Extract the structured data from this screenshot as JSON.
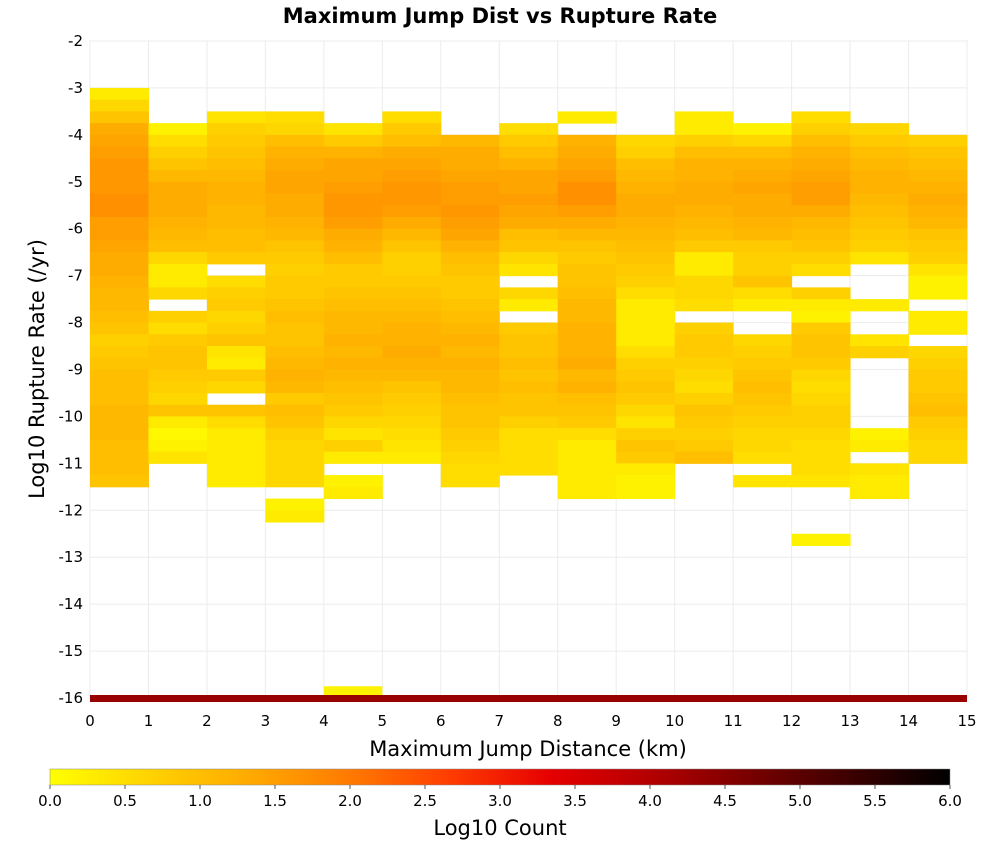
{
  "chart_data": {
    "type": "heatmap",
    "title": "Maximum Jump Dist vs Rupture Rate",
    "xlabel": "Maximum Jump Distance (km)",
    "ylabel": "Log10 Rupture Rate (/yr)",
    "xlim": [
      0,
      15
    ],
    "ylim": [
      -16,
      -2
    ],
    "x_ticks": [
      0,
      1,
      2,
      3,
      4,
      5,
      6,
      7,
      8,
      9,
      10,
      11,
      12,
      13,
      14,
      15
    ],
    "y_ticks": [
      -2,
      -3,
      -4,
      -5,
      -6,
      -7,
      -8,
      -9,
      -10,
      -11,
      -12,
      -13,
      -14,
      -15,
      -16
    ],
    "grid": true,
    "x_bin_width": 1,
    "y_bin_height": 0.25,
    "colorbar": {
      "label": "Log10 Count",
      "min": 0,
      "max": 6,
      "ticks": [
        "0.0",
        "0.5",
        "1.0",
        "1.5",
        "2.0",
        "2.5",
        "3.0",
        "3.5",
        "4.0",
        "4.5",
        "5.0",
        "5.5",
        "6.0"
      ],
      "colors": [
        "#ffff00",
        "#ffd200",
        "#ffaa00",
        "#ff7a00",
        "#ff3c00",
        "#e60000",
        "#b40000",
        "#780000",
        "#3c0000",
        "#000000"
      ]
    },
    "columns": [
      {
        "x": 0.5,
        "y_top": -3.0,
        "y_bottom": -11.5,
        "values": [
          0.3,
          0.6,
          0.9,
          1.3,
          1.4,
          1.5,
          1.6,
          1.6,
          1.6,
          1.7,
          1.7,
          1.5,
          1.5,
          1.4,
          1.3,
          1.3,
          1.2,
          1.1,
          1.1,
          1.0,
          0.9,
          0.7,
          0.8,
          0.9,
          1.0,
          1.0,
          1.0,
          1.1,
          1.1,
          1.1,
          1.0,
          1.0,
          1.0,
          0.9,
          0.8,
          0.6,
          0.5,
          0.5
        ]
      },
      {
        "x": 1.5,
        "y_top": -3.75,
        "y_bottom": -11.25,
        "values": [
          0.2,
          0.5,
          0.7,
          0.9,
          1.1,
          1.3,
          1.3,
          1.3,
          1.2,
          1.1,
          1.0,
          0.6,
          0.3,
          0.3,
          0.6,
          null,
          0.7,
          0.5,
          0.8,
          0.9,
          0.9,
          0.8,
          0.7,
          0.6,
          0.9,
          0.3,
          0.1,
          0.2,
          0.4
        ]
      },
      {
        "x": 2.5,
        "y_top": -3.5,
        "y_bottom": -11.5,
        "values": [
          0.4,
          0.7,
          0.8,
          0.9,
          1.0,
          1.1,
          1.2,
          1.2,
          1.1,
          1.1,
          1.0,
          1.0,
          0.8,
          null,
          0.5,
          0.7,
          0.8,
          0.6,
          0.7,
          0.9,
          0.4,
          0.3,
          0.8,
          0.6,
          null,
          0.9,
          0.5,
          0.3,
          0.3,
          0.3,
          0.3,
          0.3
        ]
      },
      {
        "x": 3.5,
        "y_top": -3.5,
        "y_bottom": -12.25,
        "values": [
          0.5,
          0.6,
          1.0,
          1.2,
          1.3,
          1.4,
          1.4,
          1.3,
          1.3,
          1.2,
          1.1,
          0.9,
          0.8,
          0.7,
          0.8,
          0.8,
          0.9,
          1.0,
          0.9,
          0.9,
          1.0,
          1.1,
          1.2,
          1.1,
          0.8,
          1.0,
          0.9,
          0.7,
          0.6,
          0.6,
          0.6,
          0.6,
          null,
          0.2,
          0.3
        ]
      },
      {
        "x": 4.5,
        "y_top": -3.75,
        "y_bottom": -12.0,
        "values": [
          0.4,
          0.8,
          1.2,
          1.4,
          1.4,
          1.5,
          1.6,
          1.6,
          1.5,
          1.3,
          1.2,
          1.0,
          0.8,
          0.8,
          0.9,
          1.0,
          1.1,
          1.1,
          1.2,
          1.1,
          1.2,
          1.1,
          1.0,
          0.9,
          0.8,
          0.6,
          0.4,
          0.7,
          0.3,
          null,
          0.2,
          0.3
        ]
      },
      {
        "x": 5.5,
        "y_top": -3.5,
        "y_bottom": -11.75,
        "values": [
          0.5,
          0.8,
          1.0,
          1.3,
          1.4,
          1.5,
          1.6,
          1.6,
          1.5,
          1.3,
          1.1,
          0.9,
          0.7,
          0.7,
          0.8,
          0.9,
          1.0,
          1.1,
          1.2,
          1.2,
          1.3,
          1.2,
          1.1,
          0.9,
          0.8,
          0.7,
          0.6,
          0.5,
          0.4,
          0.3
        ]
      },
      {
        "x": 6.5,
        "y_top": -4.0,
        "y_bottom": -11.5,
        "values": [
          1.1,
          1.3,
          1.3,
          1.4,
          1.5,
          1.5,
          1.6,
          1.5,
          1.4,
          1.2,
          1.0,
          0.9,
          0.8,
          0.8,
          0.9,
          1.0,
          1.1,
          1.2,
          1.1,
          1.2,
          1.1,
          1.1,
          1.0,
          0.9,
          0.9,
          0.8,
          0.7,
          0.6,
          0.5,
          0.5
        ]
      },
      {
        "x": 7.5,
        "y_top": -3.75,
        "y_bottom": -11.25,
        "values": [
          0.5,
          0.8,
          1.0,
          1.2,
          1.4,
          1.4,
          1.5,
          1.4,
          1.3,
          1.0,
          0.9,
          0.6,
          0.4,
          null,
          0.6,
          0.3,
          null,
          0.8,
          0.9,
          0.9,
          1.0,
          0.9,
          1.0,
          0.9,
          0.9,
          0.7,
          0.5,
          0.5,
          0.5,
          0.5
        ]
      },
      {
        "x": 8.5,
        "y_top": -3.5,
        "y_bottom": -11.75,
        "values": [
          0.3,
          null,
          1.2,
          1.3,
          1.4,
          1.5,
          1.7,
          1.7,
          1.5,
          1.3,
          1.1,
          0.9,
          0.8,
          0.9,
          0.9,
          1.0,
          1.1,
          1.1,
          1.2,
          1.2,
          1.2,
          1.3,
          1.1,
          1.2,
          1.0,
          0.9,
          0.8,
          0.5,
          0.3,
          0.3,
          0.3,
          0.3,
          0.3
        ]
      },
      {
        "x": 9.5,
        "y_top": -4.0,
        "y_bottom": -11.75,
        "values": [
          0.6,
          0.7,
          1.0,
          1.1,
          1.2,
          1.3,
          1.3,
          1.2,
          1.1,
          1.0,
          0.9,
          0.8,
          0.7,
          0.5,
          0.3,
          0.3,
          0.3,
          0.3,
          0.5,
          0.7,
          0.8,
          0.9,
          0.8,
          0.6,
          0.4,
          0.7,
          0.9,
          0.8,
          0.3,
          0.2,
          0.2,
          0.2
        ]
      },
      {
        "x": 10.5,
        "y_top": -3.5,
        "y_bottom": -11.0,
        "values": [
          0.3,
          0.3,
          0.7,
          1.0,
          1.2,
          1.2,
          1.3,
          1.3,
          1.2,
          1.1,
          1.0,
          0.8,
          0.3,
          0.3,
          0.6,
          0.6,
          0.5,
          null,
          0.7,
          0.8,
          0.8,
          0.7,
          0.6,
          0.5,
          0.7,
          0.9,
          0.8,
          0.7,
          0.8,
          1.0
        ]
      },
      {
        "x": 11.5,
        "y_top": -3.75,
        "y_bottom": -11.5,
        "values": [
          0.2,
          0.6,
          1.0,
          1.2,
          1.3,
          1.4,
          1.3,
          1.3,
          1.2,
          1.1,
          0.8,
          0.7,
          0.7,
          0.9,
          0.5,
          0.3,
          null,
          null,
          0.6,
          0.7,
          0.8,
          0.9,
          1.0,
          0.9,
          0.8,
          0.7,
          0.6,
          0.6,
          0.5,
          null,
          0.4,
          0.4
        ]
      },
      {
        "x": 12.5,
        "y_top": -3.5,
        "y_bottom": -12.75,
        "values": [
          0.5,
          0.7,
          1.0,
          1.2,
          1.3,
          1.4,
          1.5,
          1.5,
          1.3,
          1.1,
          1.0,
          0.9,
          0.7,
          0.5,
          null,
          0.7,
          0.3,
          0.2,
          0.8,
          0.9,
          0.9,
          0.8,
          0.6,
          0.5,
          0.6,
          0.7,
          0.7,
          0.6,
          0.5,
          0.5,
          0.5,
          0.4,
          null,
          null,
          null,
          null,
          0.2
        ]
      },
      {
        "x": 13.5,
        "y_top": -3.75,
        "y_bottom": -11.75,
        "values": [
          0.6,
          0.8,
          1.0,
          1.1,
          1.2,
          1.2,
          1.1,
          1.0,
          0.9,
          0.8,
          0.7,
          0.4,
          null,
          null,
          null,
          0.3,
          null,
          null,
          0.4,
          0.7,
          null,
          null,
          null,
          null,
          null,
          null,
          0.2,
          0.3,
          null,
          0.4,
          0.3,
          0.3
        ]
      },
      {
        "x": 14.5,
        "y_top": -4.0,
        "y_bottom": -11.0,
        "values": [
          0.7,
          0.9,
          1.0,
          1.1,
          1.2,
          1.3,
          1.2,
          1.1,
          0.9,
          0.8,
          0.7,
          0.4,
          0.2,
          0.2,
          null,
          0.3,
          0.3,
          null,
          0.6,
          0.7,
          0.8,
          0.8,
          0.9,
          1.0,
          0.8,
          0.7,
          0.6,
          0.6
        ]
      }
    ],
    "extra_cells": [
      {
        "x": 4.5,
        "y_top": -15.75,
        "y_bottom": -16.0,
        "value": 0.2
      }
    ],
    "bottom_row": {
      "y_top": -16.0,
      "y_bottom": -16.25,
      "value": 4.3
    }
  }
}
